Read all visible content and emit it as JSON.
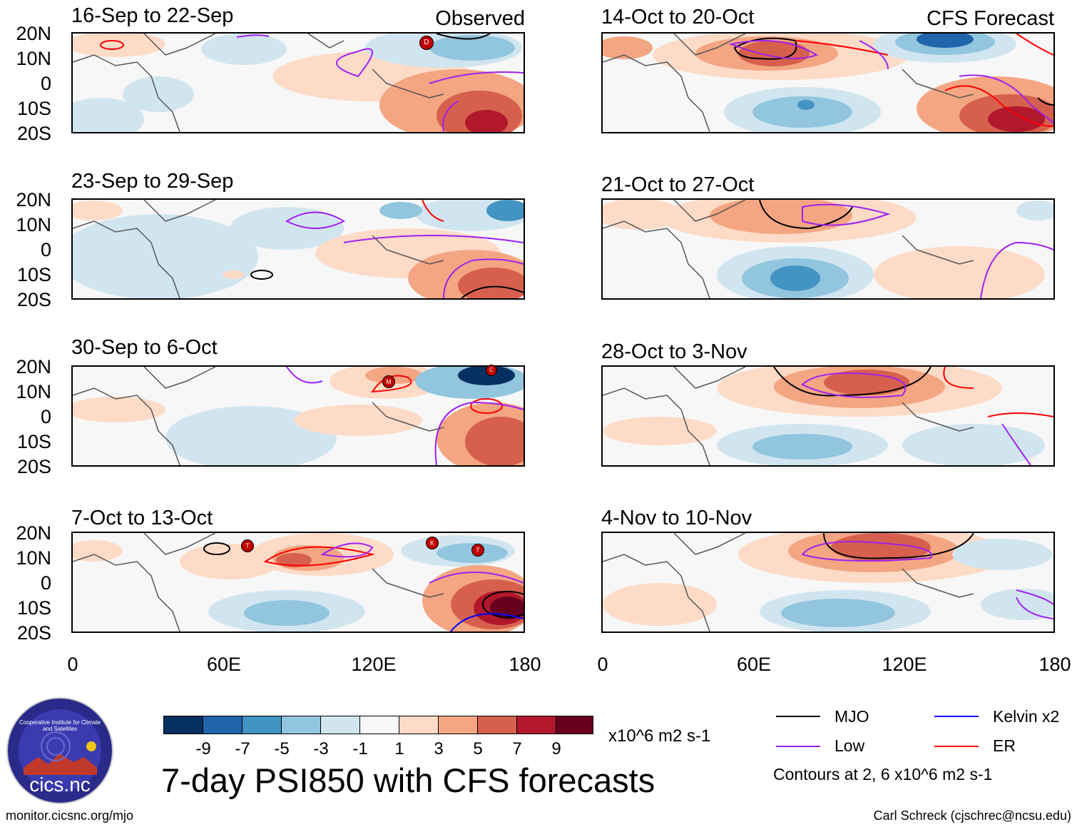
{
  "panels_left": [
    {
      "title": "16-Sep to 22-Sep",
      "header": "Observed"
    },
    {
      "title": "23-Sep to 29-Sep",
      "header": ""
    },
    {
      "title": "30-Sep to 6-Oct",
      "header": ""
    },
    {
      "title": "7-Oct to 13-Oct",
      "header": ""
    }
  ],
  "panels_right": [
    {
      "title": "14-Oct to 20-Oct",
      "header": "CFS Forecast"
    },
    {
      "title": "21-Oct to 27-Oct",
      "header": ""
    },
    {
      "title": "28-Oct to 3-Nov",
      "header": ""
    },
    {
      "title": "4-Nov to 10-Nov",
      "header": ""
    }
  ],
  "lat_labels": [
    "20N",
    "10N",
    "0",
    "10S",
    "20S"
  ],
  "lon_labels": [
    "0",
    "60E",
    "120E",
    "180"
  ],
  "colorbar": {
    "colors": [
      "#053061",
      "#2166ac",
      "#4393c3",
      "#92c5de",
      "#d1e5f0",
      "#f7f7f7",
      "#fddbc7",
      "#f4a582",
      "#d6604d",
      "#b2182b",
      "#67001f"
    ],
    "labels": [
      "-9",
      "-7",
      "-5",
      "-3",
      "-1",
      "1",
      "3",
      "5",
      "7",
      "9"
    ],
    "units": "x10^6 m2 s-1"
  },
  "main_title": "7-day PSI850 with CFS forecasts",
  "legend": {
    "items": [
      {
        "label": "MJO",
        "color": "#000000"
      },
      {
        "label": "Kelvin x2",
        "color": "#0000ff"
      },
      {
        "label": "Low",
        "color": "#a020f0"
      },
      {
        "label": "ER",
        "color": "#ff0000"
      }
    ],
    "note": "Contours at 2, 6 x10^6 m2 s-1"
  },
  "logo": {
    "text": "cics.nc",
    "ring_text": "Cooperative Institute for Climate and Satellites"
  },
  "footer": {
    "left": "monitor.cicsnc.org/mjo",
    "right": "Carl Schreck (cjschrec@ncsu.edu)"
  },
  "storm_markers": {
    "p0": [
      "D"
    ],
    "p2": [
      "M",
      "C"
    ],
    "p3": [
      "T",
      "K",
      "T"
    ]
  }
}
